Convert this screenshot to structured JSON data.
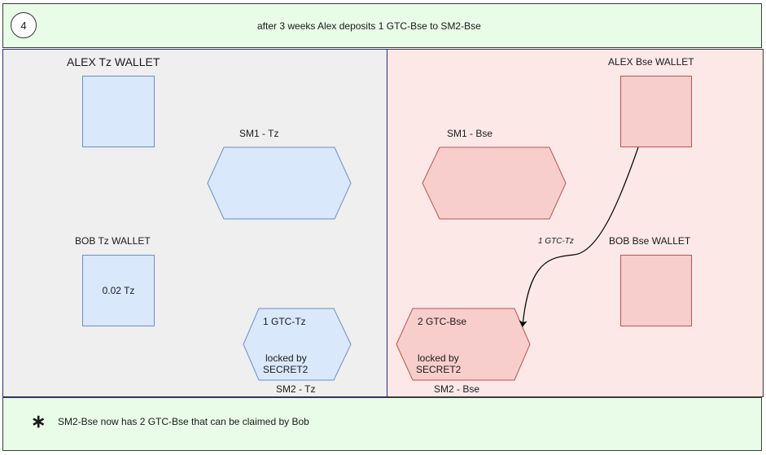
{
  "header": {
    "step": "4",
    "title": "after 3 weeks Alex deposits 1 GTC-Bse  to SM2-Bse"
  },
  "left_panel": {
    "alex_wallet_label": "ALEX Tz WALLET",
    "sm1_label": "SM1 - Tz",
    "bob_wallet_label": "BOB  Tz WALLET",
    "bob_wallet_value": "0.02  Tz",
    "sm2_amount": "1 GTC-Tz",
    "sm2_locked": "locked by",
    "sm2_secret": "SECRET2",
    "sm2_label": "SM2 - Tz"
  },
  "right_panel": {
    "alex_wallet_label": "ALEX Bse WALLET",
    "sm1_label": "SM1 - Bse",
    "bob_wallet_label": "BOB  Bse WALLET",
    "arrow_label": "1 GTC-Tz",
    "sm2_amount": "2 GTC-Bse",
    "sm2_locked": "locked by",
    "sm2_secret": "SECRET2",
    "sm2_label": "SM2 - Bse"
  },
  "footer": {
    "bullet": "∗",
    "note": "SM2-Bse  now has 2 GTC-Bse  that can be claimed by Bob"
  },
  "colors": {
    "blue_fill": "#dae8fc",
    "blue_stroke": "#6c8ebf",
    "red_fill": "#f8cecc",
    "red_stroke": "#b85450",
    "green_panel": "#e8fce8",
    "grey_panel": "#efefef",
    "pink_panel": "#fde8e8"
  }
}
